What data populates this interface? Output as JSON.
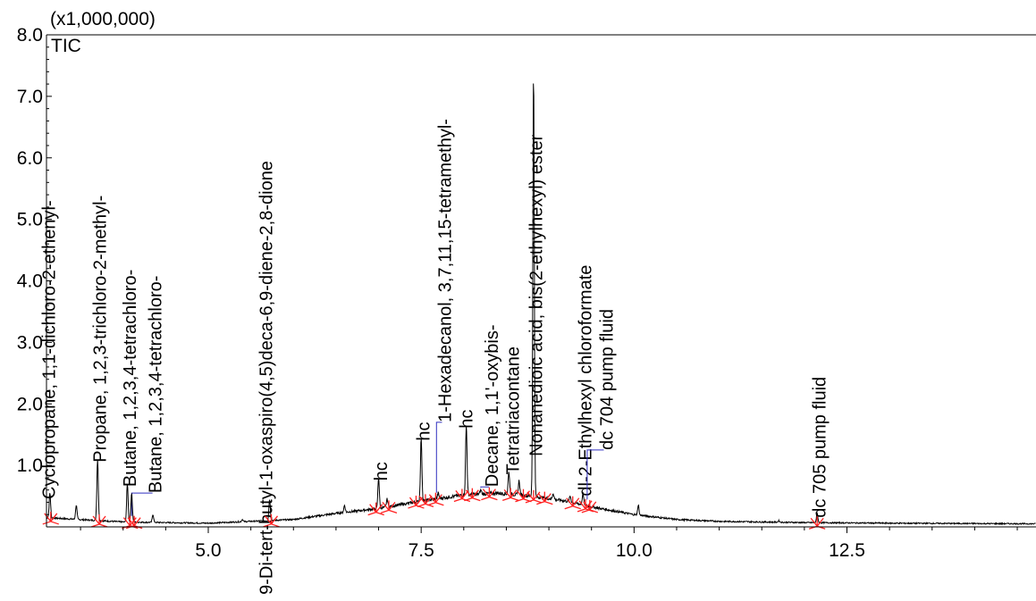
{
  "chart_data": {
    "type": "line",
    "title": "",
    "y_scale_label": "(x1,000,000)",
    "series_label": "TIC",
    "xlabel": "",
    "ylabel": "",
    "xlim": [
      3.1,
      14.72
    ],
    "ylim": [
      0,
      8.0
    ],
    "x_ticks": [
      5.0,
      7.5,
      10.0,
      12.5
    ],
    "x_tick_labels": [
      "5.0",
      "7.5",
      "10.0",
      "12.5"
    ],
    "y_ticks": [
      1.0,
      2.0,
      3.0,
      4.0,
      5.0,
      6.0,
      7.0,
      8.0
    ],
    "y_tick_labels": [
      "1.0",
      "2.0",
      "3.0",
      "4.0",
      "5.0",
      "6.0",
      "7.0",
      "8.0"
    ],
    "grid": false,
    "baseline": [
      [
        3.1,
        0.15
      ],
      [
        4.0,
        0.08
      ],
      [
        5.0,
        0.06
      ],
      [
        6.0,
        0.12
      ],
      [
        6.5,
        0.22
      ],
      [
        7.0,
        0.3
      ],
      [
        7.5,
        0.42
      ],
      [
        8.0,
        0.52
      ],
      [
        8.4,
        0.55
      ],
      [
        8.8,
        0.5
      ],
      [
        9.2,
        0.42
      ],
      [
        9.6,
        0.3
      ],
      [
        10.0,
        0.2
      ],
      [
        10.5,
        0.12
      ],
      [
        11.0,
        0.09
      ],
      [
        12.0,
        0.07
      ],
      [
        13.0,
        0.06
      ],
      [
        14.72,
        0.05
      ]
    ],
    "peaks": [
      {
        "rt": 3.14,
        "height": 0.55
      },
      {
        "rt": 3.45,
        "height": 0.35
      },
      {
        "rt": 3.7,
        "height": 1.1
      },
      {
        "rt": 4.05,
        "height": 0.7
      },
      {
        "rt": 4.1,
        "height": 0.55
      },
      {
        "rt": 4.35,
        "height": 0.2
      },
      {
        "rt": 5.4,
        "height": 0.12
      },
      {
        "rt": 5.72,
        "height": 0.45
      },
      {
        "rt": 6.6,
        "height": 0.35
      },
      {
        "rt": 7.0,
        "height": 0.8
      },
      {
        "rt": 7.1,
        "height": 0.45
      },
      {
        "rt": 7.5,
        "height": 1.45
      },
      {
        "rt": 7.7,
        "height": 0.55
      },
      {
        "rt": 8.03,
        "height": 1.65
      },
      {
        "rt": 8.2,
        "height": 0.6
      },
      {
        "rt": 8.53,
        "height": 0.9
      },
      {
        "rt": 8.65,
        "height": 0.75
      },
      {
        "rt": 8.82,
        "height": 7.4
      },
      {
        "rt": 9.05,
        "height": 0.55
      },
      {
        "rt": 9.25,
        "height": 0.5
      },
      {
        "rt": 9.4,
        "height": 0.55
      },
      {
        "rt": 10.05,
        "height": 0.35
      },
      {
        "rt": 11.7,
        "height": 0.1
      },
      {
        "rt": 12.15,
        "height": 0.22
      }
    ],
    "annotations": [
      {
        "text": "Cyclopropane, 1,1-dichloro-2-ethenyl-",
        "rt": 3.2,
        "y": 0.45,
        "link_to": null
      },
      {
        "text": "Propane, 1,2,3-trichloro-2-methyl-",
        "rt": 3.8,
        "y": 1.05,
        "link_to": null
      },
      {
        "text": "Butane, 1,2,3,4-tetrachloro-",
        "rt": 4.15,
        "y": 0.65,
        "link_to": null
      },
      {
        "text": "Butane, 1,2,3,4-tetrachloro-",
        "rt": 4.45,
        "y": 0.55,
        "link_to": 4.1
      },
      {
        "text": "9-Di-tert-butyl-1-oxaspiro(4,5)deca-6,9-diene-2,8-dione",
        "rt": 5.75,
        "y": -1.1,
        "link_to": null
      },
      {
        "text": "hc",
        "rt": 7.1,
        "y": 0.75,
        "link_to": null
      },
      {
        "text": "hc",
        "rt": 7.6,
        "y": 1.4,
        "link_to": null
      },
      {
        "text": "1-Hexadecanol, 3,7,11,15-tetramethyl-",
        "rt": 7.85,
        "y": 1.7,
        "link_to": 7.68
      },
      {
        "text": "hc",
        "rt": 8.1,
        "y": 1.6,
        "link_to": null
      },
      {
        "text": "Decane, 1,1'-oxybis-",
        "rt": 8.4,
        "y": 0.65,
        "link_to": 8.2
      },
      {
        "text": "Tetratriacontane",
        "rt": 8.65,
        "y": 0.85,
        "link_to": null
      },
      {
        "text": "Nonanedioic acid, bis(2-ethylhexyl) ester",
        "rt": 8.92,
        "y": 1.15,
        "link_to": null
      },
      {
        "text": "dl-2-Ethylhexyl chloroformate",
        "rt": 9.5,
        "y": 0.5,
        "link_to": null
      },
      {
        "text": "dc 704 pump fluid",
        "rt": 9.75,
        "y": 1.25,
        "link_to": 9.45
      },
      {
        "text": "dc 705 pump fluid",
        "rt": 12.25,
        "y": 0.15,
        "link_to": null
      }
    ],
    "integration_markers": [
      3.15,
      3.72,
      4.08,
      4.13,
      5.74,
      6.97,
      7.12,
      7.44,
      7.55,
      7.67,
      7.98,
      8.1,
      8.3,
      8.55,
      8.7,
      8.82,
      8.95,
      9.28,
      9.43,
      9.48,
      12.15
    ],
    "colors": {
      "trace": "#000000",
      "axis": "#000000",
      "marker": "#ff2020",
      "leader_line": "#3030c0",
      "label": "#000000"
    }
  }
}
